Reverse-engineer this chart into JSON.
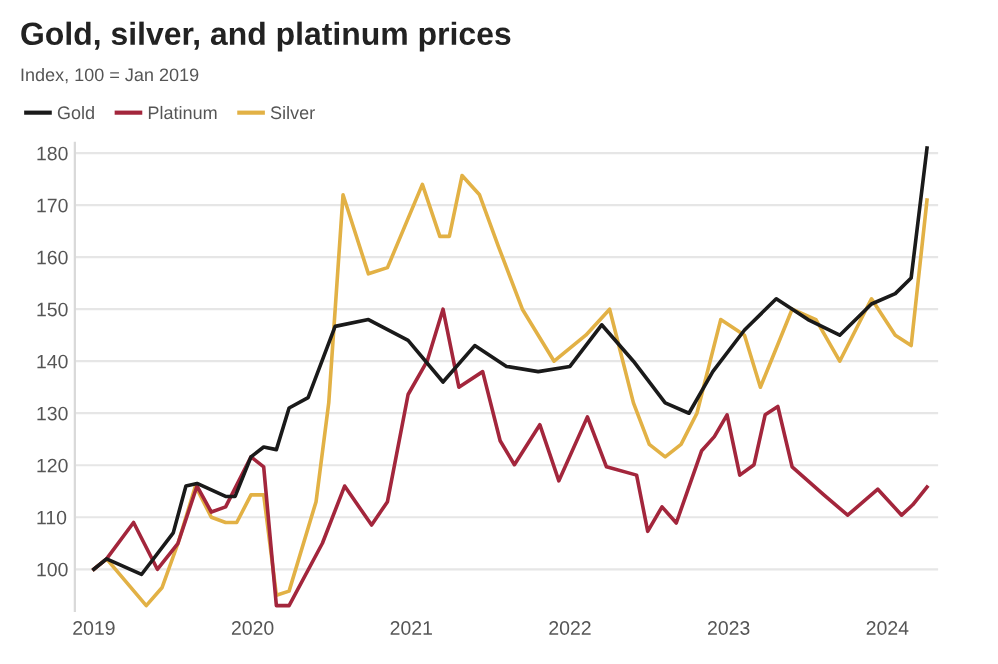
{
  "chart_data": {
    "type": "line",
    "title": "Gold, silver, and platinum prices",
    "subtitle": "Index, 100 = Jan 2019",
    "xlim": [
      2018.88,
      2024.32
    ],
    "xticks": [
      {
        "value": 2019,
        "label": "2019"
      },
      {
        "value": 2020,
        "label": "2020"
      },
      {
        "value": 2021,
        "label": "2021"
      },
      {
        "value": 2022,
        "label": "2022"
      },
      {
        "value": 2023,
        "label": "2023"
      },
      {
        "value": 2024,
        "label": "2024"
      }
    ],
    "ylim": [
      92,
      182
    ],
    "yticks": [
      100,
      110,
      120,
      130,
      140,
      150,
      160,
      170,
      180
    ],
    "grid": "y",
    "legend": "top left",
    "marker": "none",
    "line_style": "solid",
    "series": [
      {
        "name": "Gold",
        "color": "#1a1a1a",
        "x": [
          2019.0,
          2019.08,
          2019.3,
          2019.5,
          2019.58,
          2019.65,
          2019.83,
          2019.89,
          2019.99,
          2020.07,
          2020.15,
          2020.23,
          2020.35,
          2020.52,
          2020.73,
          2020.98,
          2021.2,
          2021.4,
          2021.6,
          2021.8,
          2022.0,
          2022.2,
          2022.4,
          2022.6,
          2022.75,
          2022.9,
          2023.1,
          2023.3,
          2023.5,
          2023.7,
          2023.9,
          2024.05,
          2024.15,
          2024.25
        ],
        "values": [
          100,
          102,
          99,
          107,
          116,
          116.5,
          114,
          114,
          121.6,
          123.5,
          123,
          131,
          133,
          146.7,
          148,
          144,
          136,
          143,
          139,
          138,
          139,
          147,
          140,
          132,
          130,
          138,
          146,
          152,
          148,
          145,
          151,
          153,
          156,
          181
        ]
      },
      {
        "name": "Platinum",
        "color": "#a3263c",
        "x": [
          2019.0,
          2019.08,
          2019.25,
          2019.4,
          2019.53,
          2019.65,
          2019.74,
          2019.83,
          2019.99,
          2020.07,
          2020.15,
          2020.23,
          2020.44,
          2020.58,
          2020.75,
          2020.85,
          2020.98,
          2021.1,
          2021.2,
          2021.3,
          2021.45,
          2021.56,
          2021.65,
          2021.81,
          2021.93,
          2022.11,
          2022.23,
          2022.42,
          2022.49,
          2022.58,
          2022.67,
          2022.83,
          2022.91,
          2022.99,
          2023.07,
          2023.16,
          2023.23,
          2023.31,
          2023.4,
          2023.6,
          2023.75,
          2023.94,
          2024.09,
          2024.16,
          2024.25
        ],
        "values": [
          100,
          102,
          109,
          100,
          105,
          116,
          111,
          112,
          121.6,
          119.7,
          93,
          93,
          105,
          116,
          108.5,
          113,
          133.6,
          140,
          150,
          135,
          138,
          124.7,
          120.1,
          127.8,
          117,
          129.3,
          119.7,
          118.1,
          107.3,
          112,
          108.9,
          122.8,
          125.5,
          129.7,
          118.1,
          120.1,
          129.7,
          131.3,
          119.7,
          114.3,
          110.4,
          115.4,
          110.4,
          112.4,
          115.8
        ]
      },
      {
        "name": "Silver",
        "color": "#e2b145",
        "x": [
          2019.0,
          2019.08,
          2019.33,
          2019.43,
          2019.53,
          2019.64,
          2019.74,
          2019.83,
          2019.9,
          2019.99,
          2020.07,
          2020.15,
          2020.23,
          2020.4,
          2020.48,
          2020.57,
          2020.73,
          2020.85,
          2021.07,
          2021.18,
          2021.24,
          2021.32,
          2021.43,
          2021.55,
          2021.7,
          2021.9,
          2022.1,
          2022.25,
          2022.4,
          2022.5,
          2022.6,
          2022.7,
          2022.8,
          2022.95,
          2023.1,
          2023.2,
          2023.4,
          2023.55,
          2023.7,
          2023.9,
          2024.05,
          2024.15,
          2024.25
        ],
        "values": [
          100,
          102,
          93,
          96.5,
          105,
          116,
          110,
          109,
          109,
          114.3,
          114.3,
          95,
          95.8,
          113,
          132,
          172,
          156.8,
          158,
          174,
          164,
          164,
          175.7,
          172,
          162,
          150,
          140,
          145,
          150,
          132,
          124,
          121.6,
          124,
          130,
          148,
          145,
          135,
          150,
          148,
          140,
          152,
          145,
          143,
          171
        ]
      }
    ]
  }
}
